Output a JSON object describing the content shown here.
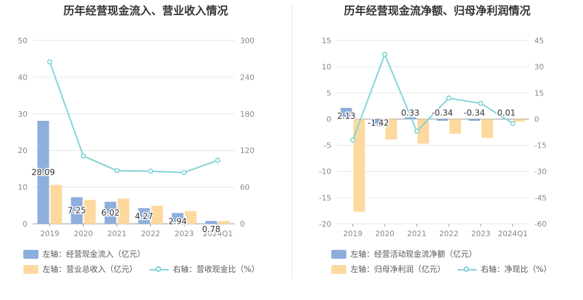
{
  "colors": {
    "blue": "#8eaedc",
    "orange": "#fdd9a0",
    "cyan": "#7fd3d8",
    "grid": "#e6e6e6",
    "axis_text": "#888888"
  },
  "chart_data": [
    {
      "title": "历年经营现金流入、营业收入情况",
      "type": "bar",
      "categories": [
        "2019",
        "2020",
        "2021",
        "2022",
        "2023",
        "2024Q1"
      ],
      "y_left": {
        "ticks": [
          0,
          10,
          20,
          30,
          40,
          50
        ],
        "range": [
          0,
          50
        ]
      },
      "y_right": {
        "ticks": [
          0,
          60,
          120,
          180,
          240,
          300
        ],
        "range": [
          0,
          300
        ]
      },
      "series": [
        {
          "name": "左轴：经营现金流入（亿元）",
          "kind": "bar",
          "axis": "left",
          "color": "#8eaedc",
          "values": [
            28.09,
            7.25,
            6.02,
            4.27,
            2.94,
            0.78
          ],
          "labels": [
            "28.09",
            "7.25",
            "6.02",
            "4.27",
            "2.94",
            "0.78"
          ]
        },
        {
          "name": "左轴：营业总收入（亿元）",
          "kind": "bar",
          "axis": "left",
          "color": "#fdd9a0",
          "values": [
            10.6,
            6.5,
            6.9,
            4.9,
            3.5,
            0.8
          ]
        },
        {
          "name": "右轴：营收现金比（%）",
          "kind": "line",
          "axis": "right",
          "color": "#7fd3d8",
          "values": [
            265,
            111,
            87,
            86,
            84,
            104
          ]
        }
      ],
      "legend": [
        "左轴：经营现金流入（亿元）",
        "左轴：营业总收入（亿元）",
        "右轴：营收现金比（%）"
      ]
    },
    {
      "title": "历年经营现金流净额、归母净利润情况",
      "type": "bar",
      "categories": [
        "2019",
        "2020",
        "2021",
        "2022",
        "2023",
        "2024Q1"
      ],
      "y_left": {
        "ticks": [
          -20,
          -15,
          -10,
          -5,
          0,
          5,
          10,
          15
        ],
        "range": [
          -20,
          15
        ]
      },
      "y_right": {
        "ticks": [
          -60,
          -45,
          -30,
          -15,
          0,
          15,
          30,
          45
        ],
        "range": [
          -60,
          45
        ]
      },
      "series": [
        {
          "name": "左轴：经营活动现金流净额（亿元）",
          "kind": "bar",
          "axis": "left",
          "color": "#8eaedc",
          "values": [
            2.13,
            -1.42,
            0.33,
            -0.34,
            -0.34,
            0.01
          ],
          "labels": [
            "2.13",
            "-1.42",
            "0.33",
            "-0.34",
            "-0.34",
            "0.01"
          ]
        },
        {
          "name": "左轴：归母净利润（亿元）",
          "kind": "bar",
          "axis": "left",
          "color": "#fdd9a0",
          "values": [
            -17.7,
            -3.9,
            -4.7,
            -2.8,
            -3.6,
            -0.5
          ]
        },
        {
          "name": "右轴：净现比（%）",
          "kind": "line",
          "axis": "right",
          "color": "#7fd3d8",
          "values": [
            -12,
            37,
            -7,
            12,
            9,
            -2.5
          ]
        }
      ],
      "legend": [
        "左轴：经营活动现金流净额（亿元）",
        "左轴：归母净利润（亿元）",
        "右轴：净现比（%）"
      ]
    }
  ]
}
